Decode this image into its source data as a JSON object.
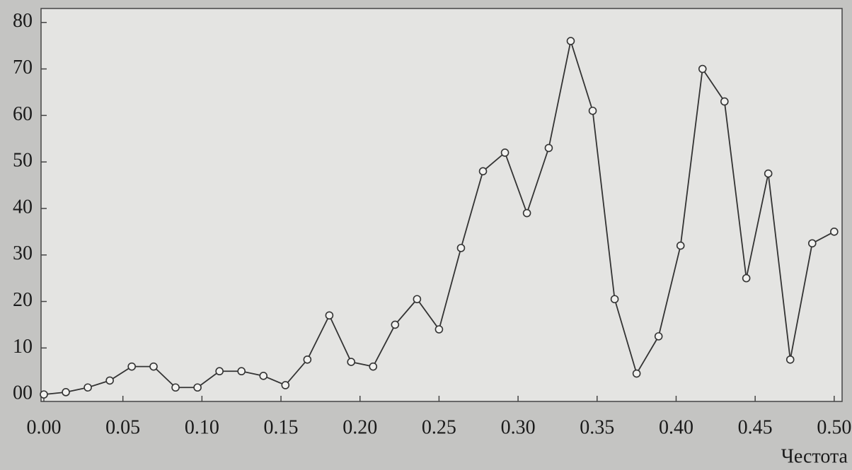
{
  "chart_data": {
    "type": "line",
    "x_label": "Честота",
    "x": [
      0,
      0.0139,
      0.0278,
      0.0417,
      0.0556,
      0.0694,
      0.0833,
      0.0972,
      0.1111,
      0.125,
      0.1389,
      0.1528,
      0.1667,
      0.1806,
      0.1944,
      0.2083,
      0.2222,
      0.2361,
      0.25,
      0.2639,
      0.2778,
      0.2917,
      0.3056,
      0.3194,
      0.3333,
      0.3472,
      0.3611,
      0.375,
      0.3889,
      0.4028,
      0.4167,
      0.4306,
      0.4444,
      0.4583,
      0.4722,
      0.4861,
      0.5
    ],
    "series": [
      {
        "color": "#333333",
        "values": [
          0,
          0.5,
          1.5,
          3,
          6,
          6,
          1.5,
          1.5,
          5,
          5,
          4,
          2,
          7.5,
          17,
          7,
          6,
          15,
          20.5,
          14,
          31.5,
          48,
          52,
          39,
          53,
          76,
          61,
          20.5,
          4.5,
          12.5,
          32,
          70,
          63,
          25,
          47.5,
          7.5,
          32.5,
          35
        ]
      }
    ],
    "xlim": [
      0,
      0.505
    ],
    "ylim": [
      -1.5,
      83
    ],
    "xticks": [
      {
        "value": 0,
        "label": "0.00"
      },
      {
        "value": 0.05,
        "label": "0.05"
      },
      {
        "value": 0.1,
        "label": "0.10"
      },
      {
        "value": 0.15,
        "label": "0.15"
      },
      {
        "value": 0.2,
        "label": "0.20"
      },
      {
        "value": 0.25,
        "label": "0.25"
      },
      {
        "value": 0.3,
        "label": "0.30"
      },
      {
        "value": 0.35,
        "label": "0.35"
      },
      {
        "value": 0.4,
        "label": "0.40"
      },
      {
        "value": 0.45,
        "label": "0.45"
      },
      {
        "value": 0.5,
        "label": "0.50"
      }
    ],
    "yticks": [
      {
        "value": 0,
        "label": "00"
      },
      10,
      20,
      30,
      40,
      50,
      60,
      70,
      80
    ]
  }
}
